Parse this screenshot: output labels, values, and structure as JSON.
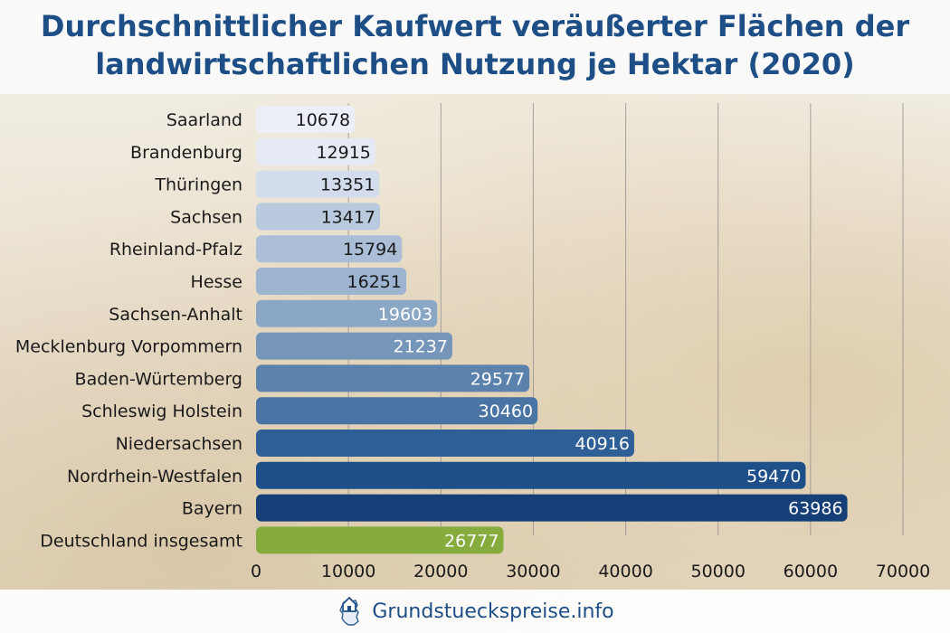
{
  "title": {
    "line1": "Durchschnittlicher Kaufwert veräußerter Flächen der",
    "line2": "landwirtschaftlichen Nutzung je Hektar (2020)"
  },
  "footer": {
    "brand": "Grundstueckspreise.info",
    "logo_icon": "house-map-logo-icon"
  },
  "colors": {
    "title": "#1d4f86",
    "highlight": "#86ac3e"
  },
  "chart_data": {
    "type": "bar",
    "orientation": "horizontal",
    "categories": [
      "Saarland",
      "Brandenburg",
      "Thüringen",
      "Sachsen",
      "Rheinland-Pfalz",
      "Hesse",
      "Sachsen-Anhalt",
      "Mecklenburg Vorpommern",
      "Baden-Würtemberg",
      "Schleswig Holstein",
      "Niedersachsen",
      "Nordrhein-Westfalen",
      "Bayern",
      "Deutschland insgesamt"
    ],
    "values": [
      10678,
      12915,
      13351,
      13417,
      15794,
      16251,
      19603,
      21237,
      29577,
      30460,
      40916,
      59470,
      63986,
      26777
    ],
    "bar_colors": [
      "#eceff8",
      "#e6eaf4",
      "#d2dcec",
      "#b9cadf",
      "#aabfd7",
      "#9cb4d0",
      "#8ba7c6",
      "#7595b9",
      "#5a82ad",
      "#4a74a3",
      "#2f5f97",
      "#1f4f88",
      "#163f77",
      "#86ac3e"
    ],
    "xlim": [
      0,
      70000
    ],
    "xticks": [
      0,
      10000,
      20000,
      30000,
      40000,
      50000,
      60000,
      70000
    ],
    "grid": true,
    "data_labels": true
  }
}
